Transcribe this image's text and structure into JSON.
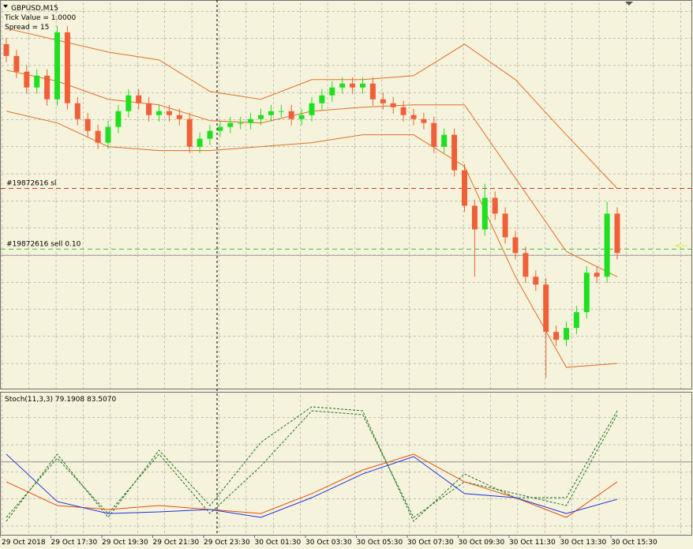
{
  "chart_data": [
    {
      "type": "candlestick",
      "title": "GBPUSD,M15",
      "annotations": [
        "Tick Value = 1.0000",
        "Spread = 15"
      ],
      "categories": [
        "29 Oct 2018",
        null,
        null,
        null,
        null,
        "29 Oct 17:30",
        null,
        null,
        null,
        null,
        "29 Oct 19:30",
        null,
        null,
        null,
        null,
        "29 Oct 21:30",
        null,
        null,
        null,
        null,
        "29 Oct 23:30",
        null,
        null,
        null,
        null,
        "30 Oct 01:30",
        null,
        null,
        null,
        null,
        "30 Oct 03:30",
        null,
        null,
        null,
        null,
        "30 Oct 05:30",
        null,
        null,
        null,
        null,
        "30 Oct 07:30",
        null,
        null,
        null,
        null,
        "30 Oct 09:30",
        null,
        null,
        null,
        null,
        "30 Oct 11:30",
        null,
        null,
        null,
        null,
        "30 Oct 13:30",
        null,
        null,
        null,
        null,
        "30 Oct 15:30"
      ],
      "open": [
        437,
        422,
        402,
        382,
        397,
        367,
        452,
        362,
        342,
        327,
        312,
        332,
        352,
        372,
        362,
        347,
        352,
        347,
        342,
        307,
        317,
        327,
        332,
        337,
        337,
        342,
        347,
        352,
        352,
        342,
        347,
        362,
        372,
        382,
        387,
        382,
        387,
        367,
        362,
        357,
        347,
        342,
        337,
        307,
        322,
        277,
        232,
        202,
        242,
        222,
        192,
        172,
        142,
        132,
        72,
        62,
        77,
        97,
        147,
        142,
        222
      ],
      "high": [
        445,
        430,
        410,
        405,
        405,
        460,
        460,
        370,
        350,
        335,
        340,
        360,
        380,
        380,
        370,
        360,
        360,
        355,
        350,
        325,
        335,
        340,
        345,
        345,
        350,
        355,
        360,
        360,
        360,
        355,
        370,
        380,
        390,
        395,
        395,
        395,
        395,
        375,
        370,
        365,
        355,
        350,
        345,
        330,
        330,
        285,
        240,
        260,
        250,
        230,
        200,
        180,
        150,
        140,
        80,
        85,
        105,
        155,
        155,
        237,
        230
      ],
      "low": [
        414,
        394,
        374,
        374,
        359,
        359,
        354,
        334,
        319,
        304,
        304,
        324,
        344,
        354,
        339,
        339,
        339,
        334,
        299,
        299,
        309,
        319,
        324,
        329,
        329,
        334,
        339,
        344,
        334,
        334,
        339,
        354,
        364,
        374,
        374,
        374,
        359,
        354,
        349,
        339,
        334,
        329,
        299,
        299,
        269,
        224,
        142,
        194,
        214,
        184,
        164,
        134,
        124,
        14,
        54,
        54,
        69,
        89,
        134,
        134,
        164
      ],
      "close": [
        422,
        402,
        382,
        397,
        367,
        452,
        362,
        342,
        327,
        312,
        332,
        352,
        372,
        362,
        347,
        352,
        347,
        342,
        307,
        317,
        327,
        332,
        337,
        337,
        342,
        347,
        352,
        352,
        342,
        347,
        362,
        372,
        382,
        387,
        382,
        387,
        367,
        362,
        357,
        347,
        342,
        337,
        307,
        322,
        277,
        232,
        202,
        242,
        222,
        192,
        172,
        142,
        132,
        72,
        62,
        77,
        97,
        147,
        142,
        222,
        172
      ],
      "up_color": "#1ee01e",
      "down_color": "#f06038",
      "bands_x": [
        0,
        5,
        10,
        15,
        20,
        25,
        30,
        35,
        40,
        45,
        50,
        55,
        60
      ],
      "bands": [
        {
          "color": "#e07028",
          "values": [
            457,
            442,
            427,
            417,
            377,
            367,
            392,
            392,
            397,
            437,
            392,
            322,
            254
          ]
        },
        {
          "color": "#e07028",
          "values": [
            404,
            390,
            367,
            360,
            340,
            337,
            352,
            357,
            360,
            360,
            267,
            174,
            142
          ]
        },
        {
          "color": "#e07028",
          "values": [
            352,
            337,
            307,
            302,
            302,
            307,
            312,
            322,
            322,
            282,
            142,
            27,
            32
          ]
        }
      ],
      "lines": [
        {
          "label": "#19872616 sl",
          "value": 254,
          "color": "#e03020"
        },
        {
          "label": "#19872616 sell 0.10",
          "value": 177,
          "color": "#40c040"
        }
      ],
      "bid_line": 169,
      "ylim": [
        0,
        492
      ],
      "grid": true
    },
    {
      "type": "line",
      "title": "Stoch(11,3,3) 79.1908 83.5070",
      "x": [
        0,
        5,
        10,
        15,
        20,
        25,
        30,
        35,
        40,
        45,
        50,
        55,
        60
      ],
      "series": [
        {
          "color": "#207020",
          "dash": true,
          "values": [
            14.7,
            58.8,
            17.6,
            61.8,
            17.6,
            52.9,
            94.1,
            91.2,
            14.7,
            41.2,
            32.4,
            23.5,
            91.2
          ]
        },
        {
          "color": "#207020",
          "dash": true,
          "values": [
            11.8,
            61.8,
            14.7,
            64.7,
            23.5,
            70.6,
            97.1,
            94.1,
            11.8,
            47.1,
            29.4,
            29.4,
            94.1
          ]
        },
        {
          "color": "#e05010",
          "dash": false,
          "values": [
            41.2,
            23.5,
            20.6,
            23.5,
            20.6,
            17.6,
            32.4,
            50,
            61.8,
            41.2,
            29.4,
            14.7,
            41.2
          ]
        },
        {
          "color": "#2030e0",
          "dash": false,
          "values": [
            61.8,
            26.5,
            17.6,
            18.8,
            20.6,
            14.7,
            29.4,
            47.1,
            60,
            32.4,
            29.4,
            17.6,
            28.2
          ]
        }
      ],
      "levels": [
        56
      ],
      "ylim": [
        0,
        100
      ]
    }
  ]
}
